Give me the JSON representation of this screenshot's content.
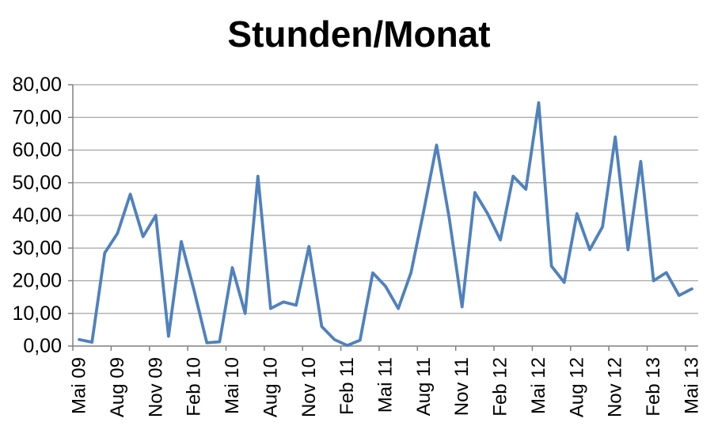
{
  "chart_data": {
    "type": "line",
    "title": "Stunden/Monat",
    "xlabel": "",
    "ylabel": "",
    "ylim": [
      0,
      80
    ],
    "y_step": 10,
    "grid": true,
    "legend": "none",
    "decimal_separator": ",",
    "y_tick_labels": [
      "80,00",
      "70,00",
      "60,00",
      "50,00",
      "40,00",
      "30,00",
      "20,00",
      "10,00",
      "0,00"
    ],
    "x_tick_labels": [
      "Mai 09",
      "Aug 09",
      "Nov 09",
      "Feb 10",
      "Mai 10",
      "Aug 10",
      "Nov 10",
      "Feb 11",
      "Mai 11",
      "Aug 11",
      "Nov 11",
      "Feb 12",
      "Mai 12",
      "Aug 12",
      "Nov 12",
      "Feb 13",
      "Mai 13"
    ],
    "points_per_label_interval": 3,
    "n_points": 49,
    "series": [
      {
        "name": "Stunden/Monat",
        "color": "#4F81BD",
        "values": [
          2,
          1.2,
          28.5,
          34.5,
          46.5,
          33.5,
          40,
          3,
          32,
          17,
          1,
          1.3,
          24,
          10,
          52,
          11.5,
          13.5,
          12.5,
          30.5,
          6,
          2,
          0.2,
          1.8,
          22.4,
          18.3,
          11.5,
          22.5,
          41.5,
          61.5,
          39,
          12,
          47,
          40.5,
          32.5,
          52,
          48,
          74.5,
          24.5,
          19.5,
          40.5,
          29.5,
          36.5,
          64,
          29.5,
          56.5,
          20,
          22.5,
          15.5,
          17.5
        ]
      }
    ],
    "colors": {
      "line": "#4F81BD",
      "gridline": "#A6A6A6",
      "axis": "#808080",
      "title_text": "#000000",
      "tick_label_text": "#000000",
      "background": "#FFFFFF"
    }
  }
}
